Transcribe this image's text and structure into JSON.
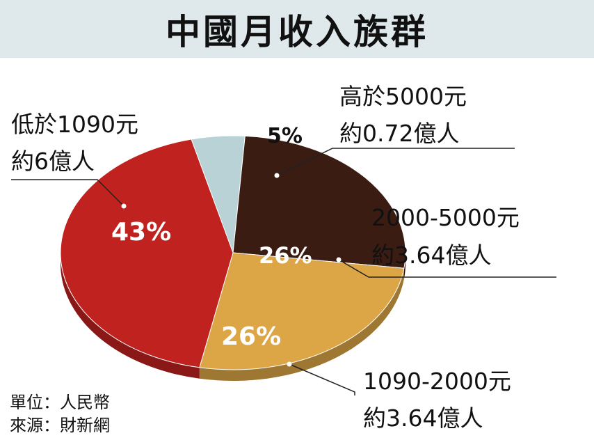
{
  "title": "中國月收入族群",
  "chart_data": {
    "type": "pie",
    "title": "中國月收入族群",
    "slices": [
      {
        "label": "高於5000元",
        "sublabel": "約0.72億人",
        "value": 5,
        "percent_label": "5%",
        "color": "#b9d2d6"
      },
      {
        "label": "2000-5000元",
        "sublabel": "約3.64億人",
        "value": 26,
        "percent_label": "26%",
        "color": "#3a1c12"
      },
      {
        "label": "1090-2000元",
        "sublabel": "約3.64億人",
        "value": 26,
        "percent_label": "26%",
        "color": "#dca546"
      },
      {
        "label": "低於1090元",
        "sublabel": "約6億人",
        "value": 43,
        "percent_label": "43%",
        "color": "#c0221f"
      }
    ]
  },
  "footer": {
    "unit": "單位：人民幣",
    "source": "來源：財新網"
  }
}
